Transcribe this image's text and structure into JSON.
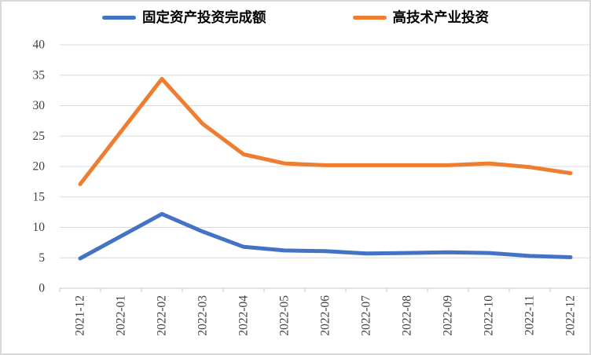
{
  "chart_data": {
    "type": "line",
    "title": "",
    "xlabel": "",
    "ylabel": "",
    "categories": [
      "2021-12",
      "2022-01",
      "2022-02",
      "2022-03",
      "2022-04",
      "2022-05",
      "2022-06",
      "2022-07",
      "2022-08",
      "2022-09",
      "2022-10",
      "2022-11",
      "2022-12"
    ],
    "series": [
      {
        "name": "固定资产投资完成额",
        "color": "#4472C4",
        "values": [
          4.9,
          null,
          12.2,
          9.3,
          6.8,
          6.2,
          6.1,
          5.7,
          5.8,
          5.9,
          5.8,
          5.3,
          5.1
        ]
      },
      {
        "name": "高技术产业投资",
        "color": "#ED7D31",
        "values": [
          17.1,
          null,
          34.4,
          27.0,
          22.0,
          20.5,
          20.2,
          20.2,
          20.2,
          20.2,
          20.5,
          19.9,
          18.9
        ]
      }
    ],
    "missing_points_interpolated": [
      "2022-01"
    ],
    "ylim": [
      0,
      40
    ],
    "y_ticks": [
      0,
      5,
      10,
      15,
      20,
      25,
      30,
      35,
      40
    ],
    "grid": true,
    "legend_position": "top",
    "x_label_rotation_deg": -90,
    "grid_color": "#D9D9D9",
    "axis_color": "#C8C8C8",
    "tick_label_color": "#404040"
  }
}
